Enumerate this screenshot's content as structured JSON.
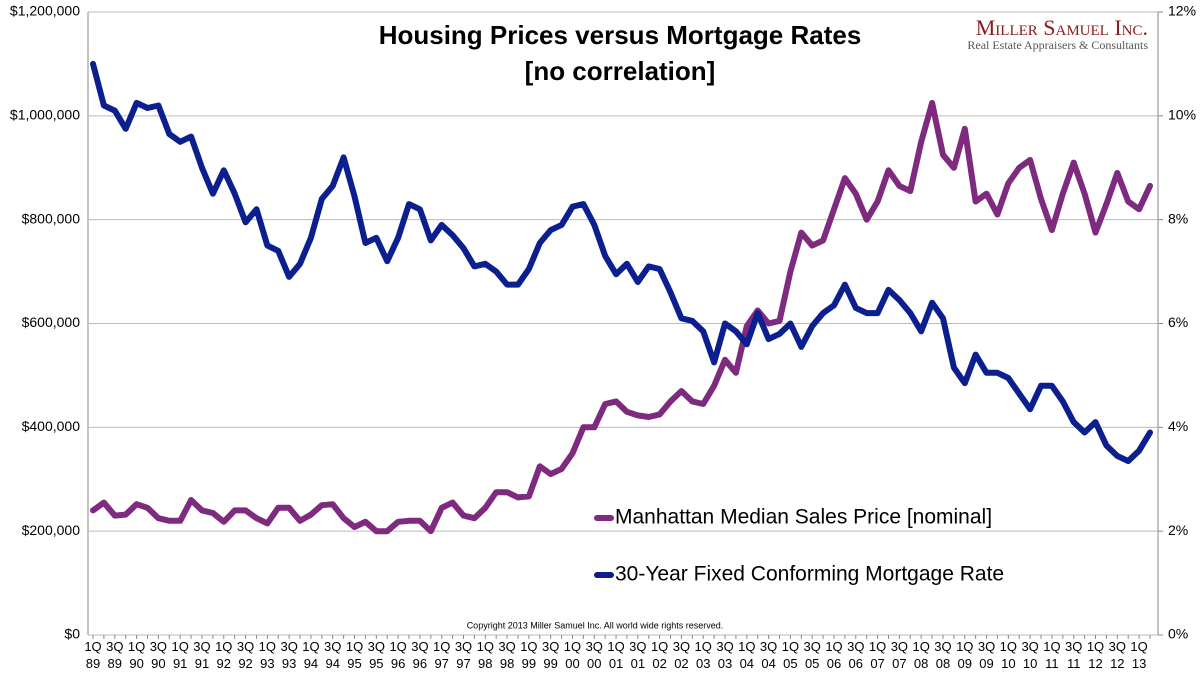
{
  "chart_data": {
    "type": "line",
    "title": "Housing Prices versus Mortgage Rates",
    "subtitle": "[no correlation]",
    "brand": "Miller Samuel Inc.",
    "brand_tagline": "Real Estate Appraisers & Consultants",
    "copyright": "Copyright 2013 Miller Samuel Inc.  All world wide rights reserved.",
    "categories": [
      "1Q 89",
      null,
      "3Q 89",
      null,
      "1Q 90",
      null,
      "3Q 90",
      null,
      "1Q 91",
      null,
      "3Q 91",
      null,
      "1Q 92",
      null,
      "3Q 92",
      null,
      "1Q 93",
      null,
      "3Q 93",
      null,
      "1Q 94",
      null,
      "3Q 94",
      null,
      "1Q 95",
      null,
      "3Q 95",
      null,
      "1Q 96",
      null,
      "3Q 96",
      null,
      "1Q 97",
      null,
      "3Q 97",
      null,
      "1Q 98",
      null,
      "3Q 98",
      null,
      "1Q 99",
      null,
      "3Q 99",
      null,
      "1Q 00",
      null,
      "3Q 00",
      null,
      "1Q 01",
      null,
      "3Q 01",
      null,
      "1Q 02",
      null,
      "3Q 02",
      null,
      "1Q 03",
      null,
      "3Q 03",
      null,
      "1Q 04",
      null,
      "3Q 04",
      null,
      "1Q 05",
      null,
      "3Q 05",
      null,
      "1Q 06",
      null,
      "3Q 06",
      null,
      "1Q 07",
      null,
      "3Q 07",
      null,
      "1Q 08",
      null,
      "3Q 08",
      null,
      "1Q 09",
      null,
      "3Q 09",
      null,
      "1Q 10",
      null,
      "3Q 10",
      null,
      "1Q 11",
      null,
      "3Q 11",
      null,
      "1Q 12",
      null,
      "3Q 12",
      null,
      "1Q 13",
      null
    ],
    "series": [
      {
        "name": "Manhattan Median Sales Price [nominal]",
        "color": "#7d2a7f",
        "axis": "y",
        "values": [
          240000,
          255000,
          230000,
          232000,
          252000,
          245000,
          225000,
          220000,
          220000,
          260000,
          240000,
          235000,
          218000,
          240000,
          240000,
          225000,
          215000,
          245000,
          245000,
          220000,
          232000,
          250000,
          252000,
          225000,
          208000,
          218000,
          200000,
          200000,
          218000,
          220000,
          220000,
          200000,
          245000,
          255000,
          230000,
          225000,
          245000,
          275000,
          275000,
          265000,
          267000,
          325000,
          310000,
          320000,
          350000,
          400000,
          400000,
          445000,
          450000,
          430000,
          423000,
          420000,
          425000,
          450000,
          470000,
          450000,
          445000,
          480000,
          530000,
          505000,
          595000,
          625000,
          600000,
          605000,
          700000,
          775000,
          750000,
          760000,
          820000,
          880000,
          850000,
          800000,
          835000,
          895000,
          865000,
          855000,
          950000,
          1025000,
          925000,
          900000,
          975000,
          835000,
          850000,
          810000,
          870000,
          900000,
          915000,
          840000,
          780000,
          850000,
          910000,
          850000,
          775000,
          830000,
          890000,
          835000,
          820000,
          865000
        ]
      },
      {
        "name": "30-Year Fixed Conforming Mortgage Rate",
        "color": "#0c1f8f",
        "axis": "y2",
        "values": [
          11.0,
          10.2,
          10.1,
          9.75,
          10.25,
          10.15,
          10.2,
          9.65,
          9.5,
          9.6,
          9.0,
          8.5,
          8.95,
          8.5,
          7.95,
          8.2,
          7.5,
          7.4,
          6.9,
          7.15,
          7.65,
          8.4,
          8.65,
          9.2,
          8.45,
          7.55,
          7.65,
          7.2,
          7.65,
          8.3,
          8.2,
          7.6,
          7.9,
          7.7,
          7.45,
          7.1,
          7.15,
          7.0,
          6.75,
          6.75,
          7.05,
          7.55,
          7.8,
          7.9,
          8.25,
          8.3,
          7.9,
          7.3,
          6.95,
          7.15,
          6.8,
          7.1,
          7.05,
          6.6,
          6.1,
          6.05,
          5.85,
          5.25,
          6.0,
          5.85,
          5.6,
          6.2,
          5.7,
          5.8,
          6.0,
          5.55,
          5.95,
          6.2,
          6.35,
          6.75,
          6.3,
          6.2,
          6.2,
          6.65,
          6.45,
          6.2,
          5.85,
          6.4,
          6.1,
          5.15,
          4.85,
          5.4,
          5.05,
          5.05,
          4.95,
          4.65,
          4.35,
          4.8,
          4.8,
          4.5,
          4.1,
          3.9,
          4.1,
          3.65,
          3.45,
          3.35,
          3.55,
          3.9
        ]
      }
    ],
    "ylim": [
      0,
      1200000
    ],
    "yticks": [
      {
        "value": 0,
        "label": "$0"
      },
      {
        "value": 200000,
        "label": "$200,000"
      },
      {
        "value": 400000,
        "label": "$400,000"
      },
      {
        "value": 600000,
        "label": "$600,000"
      },
      {
        "value": 800000,
        "label": "$800,000"
      },
      {
        "value": 1000000,
        "label": "$1,000,000"
      },
      {
        "value": 1200000,
        "label": "$1,200,000"
      }
    ],
    "y2lim": [
      0,
      12
    ],
    "y2ticks": [
      {
        "value": 0,
        "label": "0%"
      },
      {
        "value": 2,
        "label": "2%"
      },
      {
        "value": 4,
        "label": "4%"
      },
      {
        "value": 6,
        "label": "6%"
      },
      {
        "value": 8,
        "label": "8%"
      },
      {
        "value": 10,
        "label": "10%"
      },
      {
        "value": 12,
        "label": "12%"
      }
    ],
    "grid": true
  }
}
